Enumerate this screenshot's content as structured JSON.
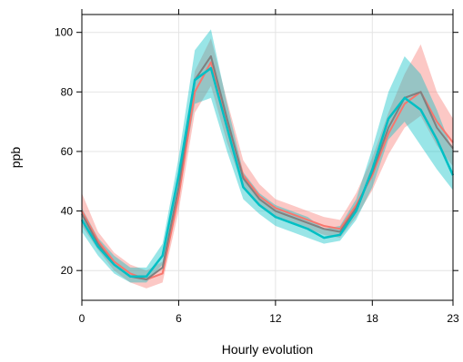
{
  "chart_data": {
    "type": "line",
    "title": "",
    "xlabel": "Hourly evolution",
    "ylabel": "ppb",
    "xlim": [
      0,
      23
    ],
    "ylim": [
      10,
      106
    ],
    "x_ticks": [
      0,
      6,
      12,
      18,
      23
    ],
    "y_ticks": [
      20,
      40,
      60,
      80,
      100
    ],
    "grid": true,
    "legend": "none",
    "x": [
      0,
      1,
      2,
      3,
      4,
      5,
      6,
      7,
      8,
      9,
      10,
      11,
      12,
      13,
      14,
      15,
      16,
      17,
      18,
      19,
      20,
      21,
      22,
      23
    ],
    "series": [
      {
        "color": "#f8766d",
        "values": [
          40,
          30,
          23,
          19,
          17,
          19,
          45,
          80,
          90,
          70,
          52,
          45,
          41,
          39,
          37,
          35,
          34,
          42,
          52,
          66,
          76,
          80,
          70,
          63
        ],
        "lower": [
          35,
          27,
          20,
          16,
          14,
          16,
          40,
          73,
          82,
          63,
          48,
          42,
          38,
          36,
          34,
          32,
          31,
          38,
          47,
          59,
          68,
          72,
          62,
          55
        ],
        "upper": [
          46,
          33,
          26,
          22,
          20,
          23,
          50,
          87,
          98,
          77,
          57,
          49,
          44,
          42,
          40,
          38,
          37,
          46,
          58,
          73,
          86,
          96,
          80,
          71
        ]
      },
      {
        "color": "#808080",
        "values": [
          39,
          29,
          22,
          18,
          17,
          21,
          48,
          84,
          92,
          71,
          51,
          44,
          40,
          38,
          36,
          34,
          33,
          41,
          53,
          68,
          78,
          80,
          68,
          61
        ]
      },
      {
        "color": "#00bfc4",
        "values": [
          37,
          28,
          22,
          18,
          18,
          25,
          52,
          84,
          88,
          68,
          48,
          42,
          38,
          36,
          34,
          31,
          32,
          40,
          54,
          71,
          78,
          74,
          64,
          52
        ],
        "lower": [
          33,
          25,
          19,
          16,
          16,
          22,
          46,
          76,
          78,
          60,
          44,
          39,
          35,
          33,
          31,
          29,
          30,
          37,
          48,
          64,
          70,
          62,
          54,
          47
        ],
        "upper": [
          41,
          31,
          25,
          21,
          21,
          29,
          58,
          94,
          101,
          76,
          53,
          46,
          42,
          40,
          38,
          34,
          35,
          44,
          61,
          80,
          92,
          86,
          74,
          60
        ]
      }
    ]
  }
}
